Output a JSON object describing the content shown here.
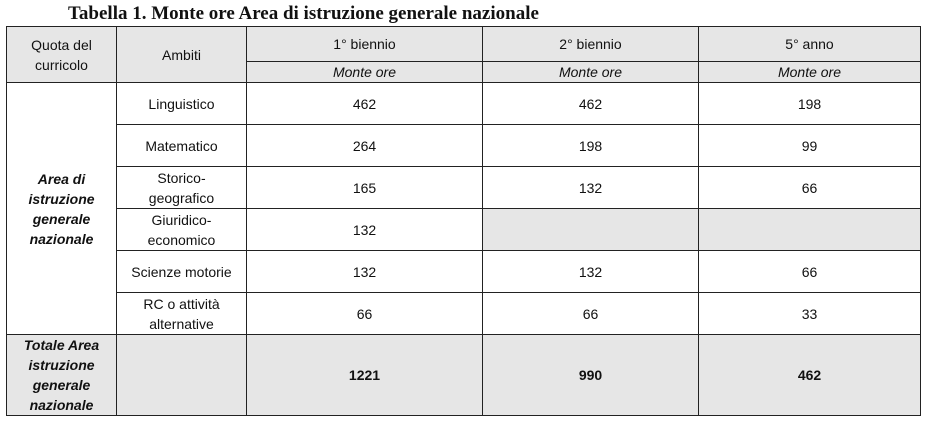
{
  "caption": "Tabella 1. Monte ore Area di istruzione generale nazionale",
  "headers": {
    "quota": "Quota del curricolo",
    "ambiti": "Ambiti",
    "col1": "1° biennio",
    "col2": "2° biennio",
    "col3": "5° anno",
    "sub1": "Monte ore",
    "sub2": "Monte ore",
    "sub3": "Monte ore"
  },
  "area_label": "Area di istruzione generale nazionale",
  "rows": [
    {
      "ambito": "Linguistico",
      "v1": "462",
      "v2": "462",
      "v3": "198"
    },
    {
      "ambito": "Matematico",
      "v1": "264",
      "v2": "198",
      "v3": "99"
    },
    {
      "ambito": "Storico-geografico",
      "v1": "165",
      "v2": "132",
      "v3": "66"
    },
    {
      "ambito": "Giuridico-economico",
      "v1": "132",
      "v2": "",
      "v3": ""
    },
    {
      "ambito": "Scienze motorie",
      "v1": "132",
      "v2": "132",
      "v3": "66"
    },
    {
      "ambito": "RC o attività alternative",
      "v1": "66",
      "v2": "66",
      "v3": "33"
    }
  ],
  "total": {
    "label": "Totale Area istruzione generale nazionale",
    "v1": "1221",
    "v2": "990",
    "v3": "462"
  },
  "colors": {
    "header_shade": "#e6e6e6",
    "border": "#222222"
  }
}
